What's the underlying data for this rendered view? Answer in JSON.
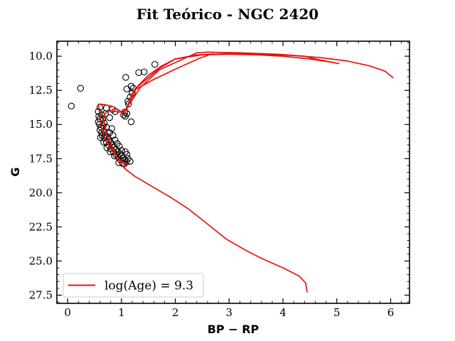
{
  "chart_data": {
    "type": "scatter",
    "title": "Fit Teórico - NGC 2420",
    "xlabel": "BP − RP",
    "ylabel": "G",
    "xlim": [
      -0.2,
      6.35
    ],
    "ylim": [
      28.1,
      8.9
    ],
    "y_inverted": true,
    "grid": false,
    "legend": {
      "placement": "lower-left",
      "entries": [
        "log(Age) = 9.3"
      ]
    },
    "x_ticks": [
      0,
      1,
      2,
      3,
      4,
      5,
      6
    ],
    "x_tick_labels": [
      "0",
      "1",
      "2",
      "3",
      "4",
      "5",
      "6"
    ],
    "y_ticks": [
      10.0,
      12.5,
      15.0,
      17.5,
      20.0,
      22.5,
      25.0,
      27.5
    ],
    "y_tick_labels": [
      "10.0",
      "12.5",
      "15.0",
      "17.5",
      "20.0",
      "22.5",
      "25.0",
      "27.5"
    ],
    "series": [
      {
        "kind": "scatter",
        "marker": "open-circle",
        "color": "#000000",
        "points": [
          [
            0.07,
            13.65
          ],
          [
            0.24,
            12.35
          ],
          [
            1.08,
            11.55
          ],
          [
            1.32,
            11.2
          ],
          [
            1.42,
            11.15
          ],
          [
            1.62,
            10.6
          ],
          [
            1.1,
            12.4
          ],
          [
            1.18,
            12.2
          ],
          [
            1.22,
            12.35
          ],
          [
            1.2,
            12.7
          ],
          [
            1.16,
            13.0
          ],
          [
            1.12,
            13.3
          ],
          [
            1.13,
            13.5
          ],
          [
            1.06,
            14.1
          ],
          [
            1.1,
            14.2
          ],
          [
            1.04,
            14.3
          ],
          [
            1.07,
            14.4
          ],
          [
            1.18,
            14.8
          ],
          [
            0.6,
            13.75
          ],
          [
            0.72,
            13.8
          ],
          [
            0.83,
            13.9
          ],
          [
            0.88,
            14.05
          ],
          [
            0.57,
            14.05
          ],
          [
            0.58,
            14.4
          ],
          [
            0.6,
            14.6
          ],
          [
            0.57,
            14.8
          ],
          [
            0.59,
            15.0
          ],
          [
            0.62,
            15.2
          ],
          [
            0.6,
            15.4
          ],
          [
            0.63,
            15.6
          ],
          [
            0.66,
            15.1
          ],
          [
            0.68,
            15.5
          ],
          [
            0.7,
            15.8
          ],
          [
            0.74,
            15.9
          ],
          [
            0.76,
            16.1
          ],
          [
            0.8,
            16.3
          ],
          [
            0.83,
            16.5
          ],
          [
            0.86,
            16.7
          ],
          [
            0.9,
            16.85
          ],
          [
            0.93,
            17.0
          ],
          [
            0.97,
            17.15
          ],
          [
            1.0,
            17.3
          ],
          [
            1.03,
            17.45
          ],
          [
            1.06,
            17.6
          ],
          [
            1.09,
            17.75
          ],
          [
            1.12,
            17.5
          ],
          [
            1.16,
            17.7
          ],
          [
            1.02,
            17.85
          ],
          [
            0.98,
            17.6
          ],
          [
            0.94,
            17.4
          ],
          [
            0.9,
            17.2
          ],
          [
            0.85,
            17.0
          ],
          [
            0.8,
            16.8
          ],
          [
            0.76,
            16.5
          ],
          [
            0.72,
            16.3
          ],
          [
            0.68,
            16.0
          ],
          [
            0.64,
            15.8
          ],
          [
            0.61,
            15.95
          ],
          [
            0.67,
            16.3
          ],
          [
            0.73,
            16.7
          ],
          [
            0.79,
            17.0
          ],
          [
            0.87,
            17.3
          ],
          [
            0.95,
            17.8
          ],
          [
            1.05,
            17.9
          ],
          [
            1.1,
            17.2
          ],
          [
            1.07,
            17.0
          ],
          [
            1.0,
            16.9
          ],
          [
            0.96,
            16.6
          ],
          [
            0.92,
            16.4
          ],
          [
            0.88,
            16.15
          ],
          [
            0.84,
            15.8
          ],
          [
            0.78,
            15.6
          ],
          [
            0.72,
            15.2
          ],
          [
            0.68,
            14.9
          ],
          [
            0.65,
            14.6
          ],
          [
            0.63,
            14.3
          ],
          [
            0.7,
            14.2
          ],
          [
            0.78,
            14.5
          ],
          [
            0.82,
            15.3
          ]
        ]
      },
      {
        "kind": "line",
        "name": "log(Age) = 9.3",
        "color": "#e8130f",
        "points": [
          [
            4.45,
            27.3
          ],
          [
            4.42,
            26.6
          ],
          [
            4.3,
            26.1
          ],
          [
            4.0,
            25.5
          ],
          [
            3.6,
            24.8
          ],
          [
            3.3,
            24.2
          ],
          [
            2.95,
            23.4
          ],
          [
            2.6,
            22.3
          ],
          [
            2.25,
            21.2
          ],
          [
            1.9,
            20.3
          ],
          [
            1.55,
            19.5
          ],
          [
            1.25,
            18.8
          ],
          [
            1.05,
            18.2
          ],
          [
            0.92,
            17.4
          ],
          [
            0.82,
            16.6
          ],
          [
            0.74,
            15.9
          ],
          [
            0.69,
            15.2
          ],
          [
            0.67,
            14.6
          ],
          [
            0.7,
            14.15
          ],
          [
            0.8,
            13.95
          ],
          [
            0.95,
            14.1
          ],
          [
            1.06,
            14.0
          ],
          [
            1.12,
            13.6
          ],
          [
            1.17,
            13.0
          ],
          [
            1.25,
            12.4
          ],
          [
            1.4,
            11.9
          ],
          [
            1.7,
            10.9
          ],
          [
            2.0,
            10.2
          ],
          [
            2.4,
            9.9
          ],
          [
            3.0,
            9.8
          ],
          [
            3.6,
            9.85
          ],
          [
            4.2,
            9.95
          ],
          [
            4.7,
            10.1
          ],
          [
            5.2,
            10.35
          ],
          [
            5.6,
            10.7
          ],
          [
            5.9,
            11.1
          ],
          [
            6.05,
            11.6
          ]
        ]
      },
      {
        "kind": "line",
        "name": "log(Age) = 9.3",
        "color": "#e8130f",
        "points": [
          [
            0.57,
            13.5
          ],
          [
            0.6,
            14.3
          ],
          [
            0.63,
            15.2
          ],
          [
            0.7,
            16.1
          ],
          [
            0.82,
            16.9
          ],
          [
            0.97,
            17.6
          ],
          [
            1.12,
            17.95
          ]
        ]
      },
      {
        "kind": "line",
        "name": "log(Age) = 9.3",
        "color": "#e8130f",
        "points": [
          [
            0.57,
            13.5
          ],
          [
            0.7,
            13.55
          ],
          [
            0.85,
            13.7
          ],
          [
            0.97,
            14.0
          ],
          [
            1.03,
            14.2
          ],
          [
            1.1,
            13.9
          ],
          [
            1.2,
            12.9
          ],
          [
            1.3,
            12.2
          ],
          [
            1.5,
            11.4
          ],
          [
            1.75,
            10.7
          ],
          [
            2.0,
            10.2
          ],
          [
            2.5,
            9.9
          ],
          [
            3.0,
            9.85
          ],
          [
            3.5,
            9.9
          ],
          [
            4.0,
            10.0
          ],
          [
            4.5,
            10.2
          ],
          [
            5.0,
            10.5
          ]
        ]
      },
      {
        "kind": "line",
        "name": "log(Age) = 9.3",
        "color": "#e8130f",
        "points": [
          [
            1.15,
            13.5
          ],
          [
            1.35,
            12.3
          ],
          [
            1.7,
            11.0
          ],
          [
            2.4,
            9.75
          ],
          [
            2.6,
            9.7
          ],
          [
            3.2,
            9.75
          ],
          [
            3.9,
            9.85
          ],
          [
            4.4,
            10.0
          ],
          [
            4.6,
            10.2
          ],
          [
            5.05,
            10.55
          ]
        ]
      },
      {
        "kind": "line",
        "name": "log(Age) = 9.3",
        "color": "#e8130f",
        "points": [
          [
            1.28,
            12.4
          ],
          [
            1.6,
            11.7
          ],
          [
            2.0,
            10.95
          ],
          [
            2.45,
            10.15
          ],
          [
            2.7,
            9.8
          ]
        ]
      }
    ]
  }
}
